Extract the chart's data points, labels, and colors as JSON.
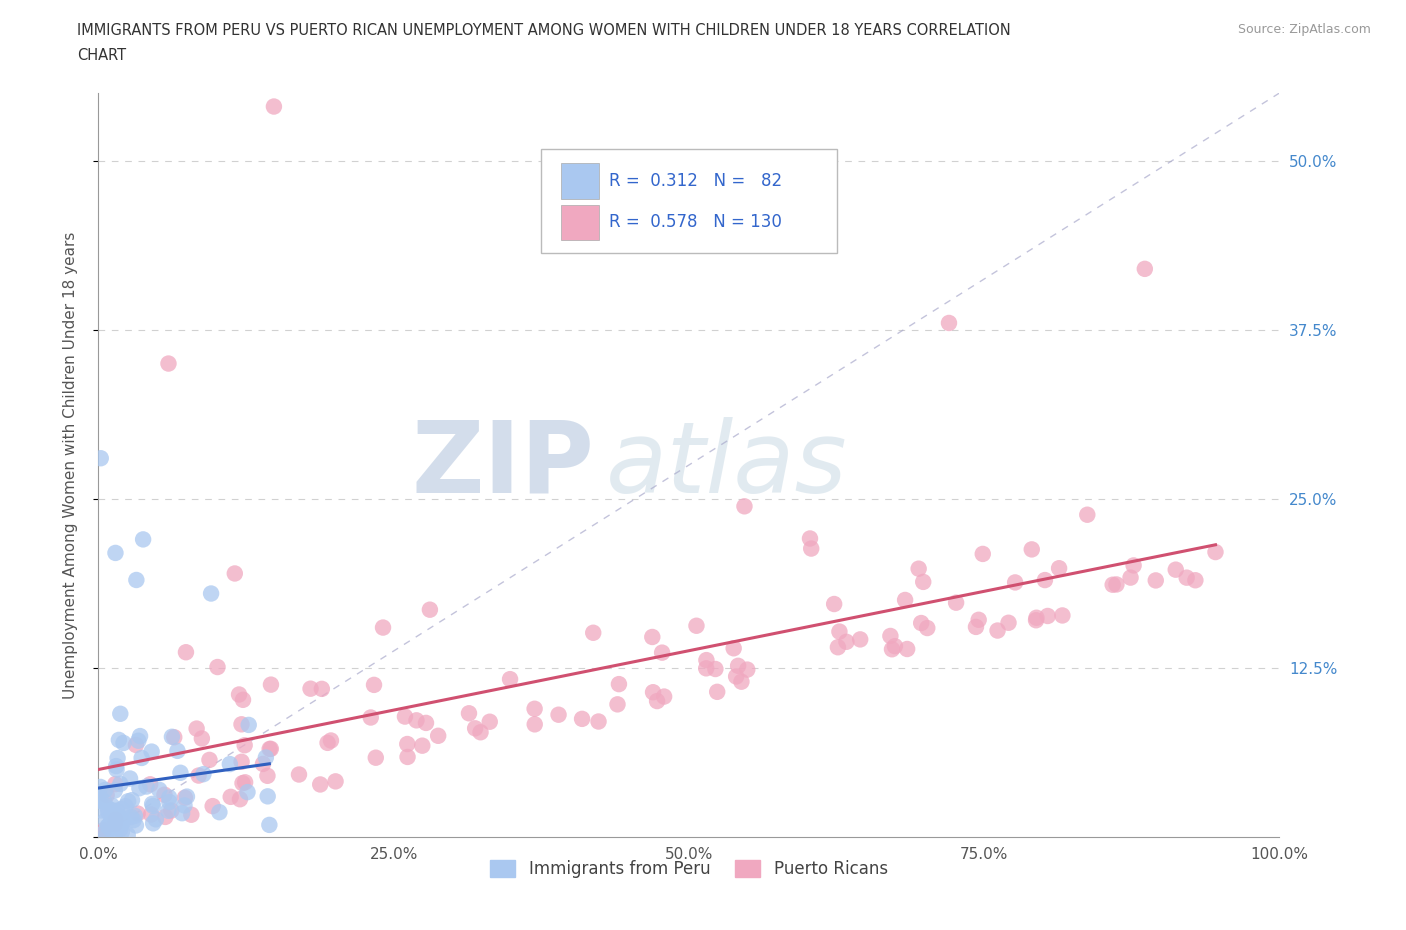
{
  "title_line1": "IMMIGRANTS FROM PERU VS PUERTO RICAN UNEMPLOYMENT AMONG WOMEN WITH CHILDREN UNDER 18 YEARS CORRELATION",
  "title_line2": "CHART",
  "source": "Source: ZipAtlas.com",
  "ylabel": "Unemployment Among Women with Children Under 18 years",
  "xlim": [
    0.0,
    1.0
  ],
  "ylim": [
    0.0,
    0.55
  ],
  "x_ticks": [
    0.0,
    0.25,
    0.5,
    0.75,
    1.0
  ],
  "x_tick_labels": [
    "0.0%",
    "25.0%",
    "50.0%",
    "75.0%",
    "100.0%"
  ],
  "y_ticks": [
    0.0,
    0.125,
    0.25,
    0.375,
    0.5
  ],
  "y_tick_labels": [
    "",
    "12.5%",
    "25.0%",
    "37.5%",
    "50.0%"
  ],
  "blue_R": 0.312,
  "blue_N": 82,
  "pink_R": 0.578,
  "pink_N": 130,
  "blue_color": "#aac8f0",
  "pink_color": "#f0a8c0",
  "blue_line_color": "#3060c0",
  "pink_line_color": "#d05070",
  "diagonal_color": "#aaaacc",
  "watermark_zip": "ZIP",
  "watermark_atlas": "atlas",
  "legend_label_blue": "Immigrants from Peru",
  "legend_label_pink": "Puerto Ricans",
  "blue_seed": 7,
  "pink_seed": 99
}
